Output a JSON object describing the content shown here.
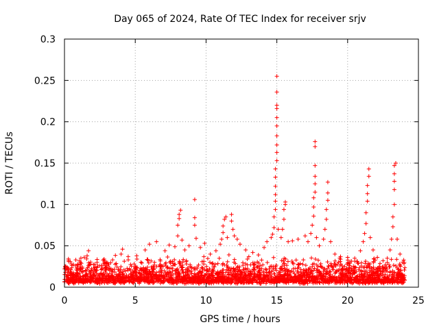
{
  "chart_data": {
    "type": "scatter",
    "title": "Day 065 of 2024, Rate Of TEC Index for receiver srjv",
    "xlabel": "GPS time / hours",
    "ylabel": "ROTI / TECUs",
    "xlim": [
      0,
      25
    ],
    "ylim": [
      0,
      0.3
    ],
    "xticks": [
      0,
      5,
      10,
      15,
      20,
      25
    ],
    "xtick_labels": [
      "0",
      "5",
      "10",
      "15",
      "20",
      "25"
    ],
    "yticks": [
      0,
      0.05,
      0.1,
      0.15,
      0.2,
      0.25,
      0.3
    ],
    "ytick_labels": [
      "0",
      "0.05",
      "0.1",
      "0.15",
      "0.2",
      "0.25",
      "0.3"
    ],
    "grid": true,
    "marker": "+",
    "color": "#ff0000",
    "series": [
      {
        "name": "ROTI",
        "baseline_note": "dense band of points roughly 0.005–0.03 TECU/s across 0–24 h",
        "points": [
          [
            0.1,
            0.025
          ],
          [
            0.3,
            0.031
          ],
          [
            0.5,
            0.028
          ],
          [
            0.8,
            0.033
          ],
          [
            1.1,
            0.027
          ],
          [
            1.6,
            0.038
          ],
          [
            1.7,
            0.044
          ],
          [
            2.3,
            0.03
          ],
          [
            2.8,
            0.034
          ],
          [
            3.4,
            0.033
          ],
          [
            4.0,
            0.04
          ],
          [
            4.1,
            0.046
          ],
          [
            4.5,
            0.037
          ],
          [
            5.1,
            0.038
          ],
          [
            5.7,
            0.045
          ],
          [
            6.0,
            0.052
          ],
          [
            6.5,
            0.055
          ],
          [
            7.1,
            0.044
          ],
          [
            7.4,
            0.051
          ],
          [
            7.8,
            0.049
          ],
          [
            8.0,
            0.062
          ],
          [
            8.0,
            0.075
          ],
          [
            8.1,
            0.083
          ],
          [
            8.1,
            0.088
          ],
          [
            8.2,
            0.093
          ],
          [
            8.3,
            0.057
          ],
          [
            8.5,
            0.045
          ],
          [
            8.8,
            0.05
          ],
          [
            9.2,
            0.106
          ],
          [
            9.2,
            0.084
          ],
          [
            9.2,
            0.075
          ],
          [
            9.3,
            0.059
          ],
          [
            9.6,
            0.048
          ],
          [
            9.9,
            0.053
          ],
          [
            10.3,
            0.04
          ],
          [
            10.7,
            0.044
          ],
          [
            11.0,
            0.052
          ],
          [
            11.1,
            0.058
          ],
          [
            11.2,
            0.066
          ],
          [
            11.2,
            0.074
          ],
          [
            11.3,
            0.082
          ],
          [
            11.4,
            0.085
          ],
          [
            11.5,
            0.06
          ],
          [
            11.8,
            0.088
          ],
          [
            11.8,
            0.08
          ],
          [
            11.9,
            0.07
          ],
          [
            12.0,
            0.062
          ],
          [
            12.2,
            0.058
          ],
          [
            12.4,
            0.052
          ],
          [
            12.8,
            0.045
          ],
          [
            13.3,
            0.042
          ],
          [
            13.7,
            0.039
          ],
          [
            14.1,
            0.048
          ],
          [
            14.3,
            0.055
          ],
          [
            14.6,
            0.06
          ],
          [
            14.7,
            0.064
          ],
          [
            14.8,
            0.072
          ],
          [
            14.8,
            0.085
          ],
          [
            14.9,
            0.094
          ],
          [
            14.9,
            0.104
          ],
          [
            14.9,
            0.112
          ],
          [
            14.9,
            0.122
          ],
          [
            14.9,
            0.133
          ],
          [
            14.9,
            0.143
          ],
          [
            15.0,
            0.153
          ],
          [
            15.0,
            0.163
          ],
          [
            15.0,
            0.172
          ],
          [
            15.0,
            0.183
          ],
          [
            15.0,
            0.195
          ],
          [
            15.0,
            0.205
          ],
          [
            15.0,
            0.216
          ],
          [
            15.0,
            0.22
          ],
          [
            15.0,
            0.236
          ],
          [
            15.0,
            0.255
          ],
          [
            15.1,
            0.07
          ],
          [
            15.3,
            0.06
          ],
          [
            15.4,
            0.07
          ],
          [
            15.5,
            0.082
          ],
          [
            15.5,
            0.094
          ],
          [
            15.6,
            0.1
          ],
          [
            15.6,
            0.103
          ],
          [
            15.8,
            0.055
          ],
          [
            16.1,
            0.056
          ],
          [
            16.5,
            0.058
          ],
          [
            17.0,
            0.062
          ],
          [
            17.2,
            0.055
          ],
          [
            17.4,
            0.065
          ],
          [
            17.5,
            0.075
          ],
          [
            17.6,
            0.086
          ],
          [
            17.6,
            0.097
          ],
          [
            17.6,
            0.108
          ],
          [
            17.7,
            0.115
          ],
          [
            17.7,
            0.125
          ],
          [
            17.7,
            0.134
          ],
          [
            17.7,
            0.147
          ],
          [
            17.7,
            0.17
          ],
          [
            17.7,
            0.176
          ],
          [
            17.8,
            0.06
          ],
          [
            18.0,
            0.05
          ],
          [
            18.3,
            0.058
          ],
          [
            18.4,
            0.07
          ],
          [
            18.5,
            0.082
          ],
          [
            18.5,
            0.094
          ],
          [
            18.6,
            0.105
          ],
          [
            18.6,
            0.114
          ],
          [
            18.6,
            0.127
          ],
          [
            18.8,
            0.055
          ],
          [
            19.1,
            0.04
          ],
          [
            19.5,
            0.037
          ],
          [
            20.0,
            0.036
          ],
          [
            20.5,
            0.035
          ],
          [
            20.9,
            0.044
          ],
          [
            21.1,
            0.055
          ],
          [
            21.2,
            0.065
          ],
          [
            21.3,
            0.077
          ],
          [
            21.3,
            0.09
          ],
          [
            21.4,
            0.104
          ],
          [
            21.4,
            0.113
          ],
          [
            21.4,
            0.123
          ],
          [
            21.5,
            0.134
          ],
          [
            21.5,
            0.143
          ],
          [
            21.6,
            0.06
          ],
          [
            21.8,
            0.045
          ],
          [
            22.1,
            0.036
          ],
          [
            22.5,
            0.032
          ],
          [
            22.8,
            0.035
          ],
          [
            23.0,
            0.045
          ],
          [
            23.1,
            0.058
          ],
          [
            23.2,
            0.073
          ],
          [
            23.2,
            0.085
          ],
          [
            23.3,
            0.1
          ],
          [
            23.3,
            0.118
          ],
          [
            23.3,
            0.128
          ],
          [
            23.3,
            0.137
          ],
          [
            23.3,
            0.147
          ],
          [
            23.4,
            0.15
          ],
          [
            23.5,
            0.058
          ],
          [
            23.7,
            0.04
          ],
          [
            24.0,
            0.03
          ]
        ]
      }
    ]
  }
}
